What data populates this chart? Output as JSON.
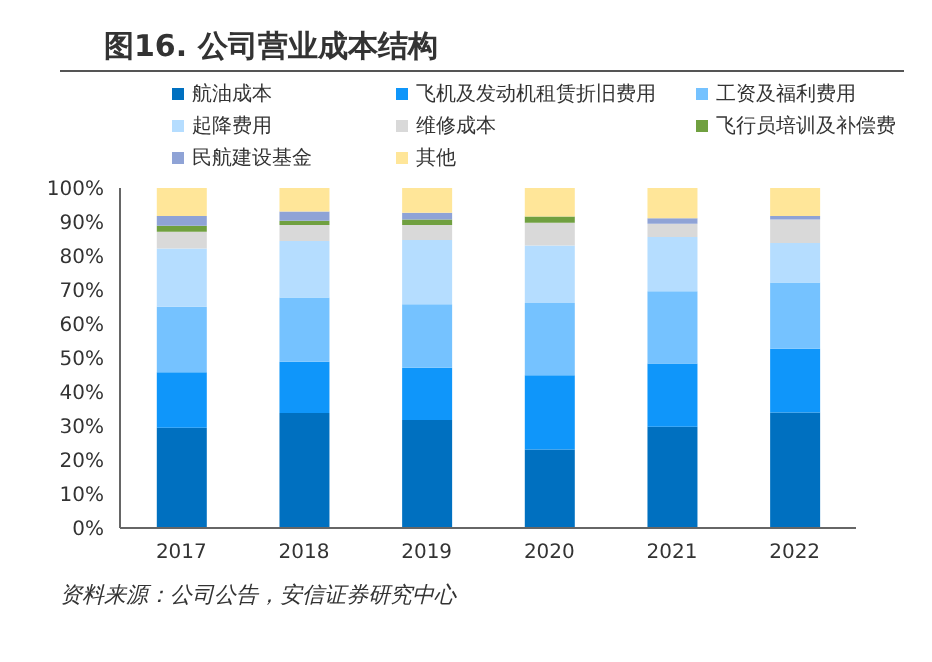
{
  "chart_data": {
    "type": "bar",
    "title": "图16. 公司营业成本结构",
    "stacked": true,
    "legend": "top",
    "grid": false,
    "categories": [
      "2017",
      "2018",
      "2019",
      "2020",
      "2021",
      "2022"
    ],
    "series": [
      {
        "name": "航油成本",
        "color": "#0070c0",
        "values": [
          29.5,
          33.8,
          31.8,
          23.1,
          29.8,
          34.0
        ]
      },
      {
        "name": "飞机及发动机租赁折旧费用",
        "color": "#0f96fa",
        "values": [
          16.3,
          15.1,
          15.3,
          21.8,
          18.6,
          18.7
        ]
      },
      {
        "name": "工资及福利费用",
        "color": "#75c2ff",
        "values": [
          19.3,
          18.9,
          18.7,
          21.3,
          21.2,
          19.5
        ]
      },
      {
        "name": "起降费用",
        "color": "#b5ddff",
        "values": [
          17.1,
          16.6,
          18.9,
          16.9,
          16.0,
          11.6
        ]
      },
      {
        "name": "维修成本",
        "color": "#d9d9d9",
        "values": [
          4.9,
          4.7,
          4.4,
          6.7,
          3.9,
          6.9
        ]
      },
      {
        "name": "飞行员培训及补偿费",
        "color": "#70a040",
        "values": [
          1.8,
          1.3,
          1.6,
          1.8,
          0,
          0
        ]
      },
      {
        "name": "民航建设基金",
        "color": "#8fa3d6",
        "values": [
          2.9,
          2.7,
          2.0,
          0,
          1.6,
          1.1
        ]
      },
      {
        "name": "其他",
        "color": "#ffe699",
        "values": [
          8.2,
          6.9,
          7.3,
          8.4,
          8.9,
          8.2
        ]
      }
    ],
    "ylim": [
      0,
      100
    ],
    "yticks": [
      {
        "value": 0,
        "label": "0%"
      },
      {
        "value": 10,
        "label": "10%"
      },
      {
        "value": 20,
        "label": "20%"
      },
      {
        "value": 30,
        "label": "30%"
      },
      {
        "value": 40,
        "label": "40%"
      },
      {
        "value": 50,
        "label": "50%"
      },
      {
        "value": 60,
        "label": "60%"
      },
      {
        "value": 70,
        "label": "70%"
      },
      {
        "value": 80,
        "label": "80%"
      },
      {
        "value": 90,
        "label": "90%"
      },
      {
        "value": 100,
        "label": "100%"
      }
    ],
    "annotations": [
      "资料来源：公司公告，安信证券研究中心"
    ]
  }
}
